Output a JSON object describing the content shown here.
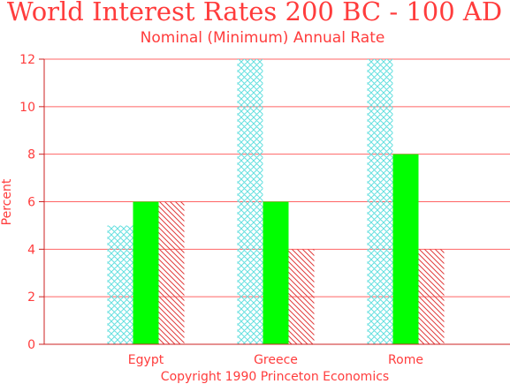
{
  "chart_data": {
    "type": "bar",
    "title": "World Interest Rates 200 BC - 100 AD",
    "subtitle": "Nominal (Minimum) Annual Rate",
    "ylabel": "Percent",
    "footer": "Copyright 1990 Princeton Economics",
    "categories": [
      "Egypt",
      "Greece",
      "Rome"
    ],
    "ylim": [
      0,
      12
    ],
    "yticks": [
      "0",
      "2",
      "4",
      "6",
      "8",
      "10",
      "12"
    ],
    "grid": true,
    "series": [
      {
        "values": [
          5,
          12,
          12
        ],
        "color": "#66e0e0",
        "pattern": "crosshatch"
      },
      {
        "values": [
          6,
          6,
          8
        ],
        "color": "#00ff00",
        "pattern": "solid"
      },
      {
        "values": [
          6,
          4,
          4
        ],
        "color": "#e03c3c",
        "pattern": "diagonal"
      }
    ],
    "colors": {
      "text": "#ff3c3c",
      "grid": "#ff6464",
      "axis": "#cc2222"
    }
  }
}
